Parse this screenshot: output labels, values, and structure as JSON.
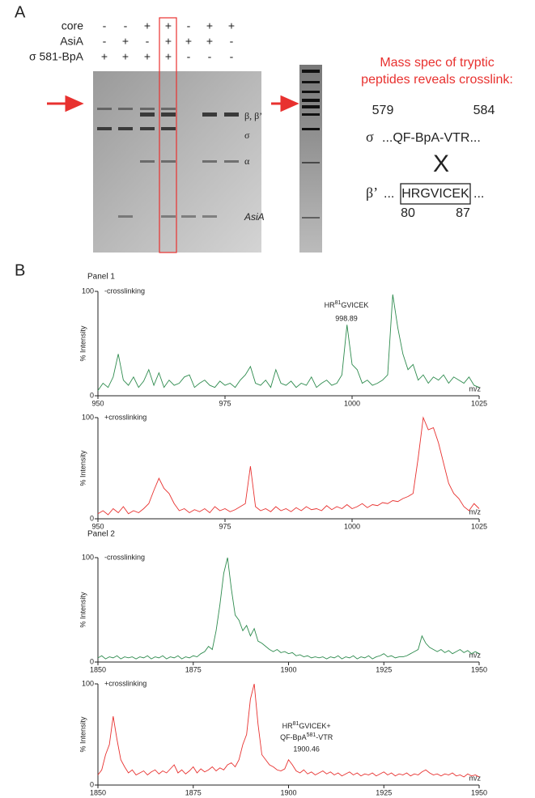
{
  "panel_a": {
    "label": "A",
    "row_labels": [
      "core",
      "AsiA",
      "σ 581-BpA"
    ],
    "lanes": [
      [
        "-",
        "-",
        "+",
        "+",
        "-",
        "+",
        "+"
      ],
      [
        "-",
        "+",
        "-",
        "+",
        "+",
        "+",
        "-"
      ],
      [
        "+",
        "+",
        "+",
        "+",
        "-",
        "-",
        "-"
      ]
    ],
    "band_labels": [
      "β, β’",
      "σ",
      "α",
      "AsiA"
    ],
    "ms_title": [
      "Mass spec of tryptic",
      "peptides reveals crosslink:"
    ],
    "sigma": {
      "symbol": "σ",
      "start": "579",
      "end": "584",
      "sequence": "...QF-BpA-VTR..."
    },
    "cross": "X",
    "beta": {
      "symbol": "β’",
      "prefix": "...",
      "boxed": "HRGVICEK",
      "suffix": "...",
      "start": "80",
      "end": "87"
    }
  },
  "panel_b": {
    "label": "B",
    "panels": [
      "Panel 1",
      "Panel 2"
    ]
  },
  "chart_data": [
    {
      "type": "line",
      "title": "-crosslinking",
      "ylabel": "% Intensity",
      "xlabel": "m/z",
      "x": [
        950,
        951,
        952,
        953,
        954,
        955,
        956,
        957,
        958,
        959,
        960,
        961,
        962,
        963,
        964,
        965,
        966,
        967,
        968,
        969,
        970,
        971,
        972,
        973,
        974,
        975,
        976,
        977,
        978,
        979,
        980,
        981,
        982,
        983,
        984,
        985,
        986,
        987,
        988,
        989,
        990,
        991,
        992,
        993,
        994,
        995,
        996,
        997,
        998,
        999,
        1000,
        1001,
        1002,
        1003,
        1004,
        1005,
        1006,
        1007,
        1008,
        1009,
        1010,
        1011,
        1012,
        1013,
        1014,
        1015,
        1016,
        1017,
        1018,
        1019,
        1020,
        1021,
        1022,
        1023,
        1024,
        1025
      ],
      "series": [
        {
          "color": "#2e8b4e",
          "values": [
            5,
            12,
            8,
            18,
            40,
            15,
            10,
            18,
            8,
            14,
            25,
            10,
            22,
            8,
            15,
            10,
            12,
            18,
            20,
            8,
            12,
            15,
            10,
            8,
            14,
            10,
            12,
            8,
            15,
            20,
            28,
            12,
            10,
            15,
            8,
            25,
            12,
            10,
            14,
            8,
            12,
            10,
            18,
            8,
            12,
            15,
            10,
            12,
            20,
            68,
            30,
            25,
            12,
            15,
            10,
            12,
            15,
            20,
            97,
            65,
            40,
            25,
            30,
            15,
            20,
            12,
            18,
            15,
            20,
            12,
            18,
            15,
            12,
            18,
            10,
            8
          ]
        }
      ],
      "xlim": [
        950,
        1025
      ],
      "ylim": [
        0,
        100
      ],
      "xticks": [
        950,
        975,
        1000,
        1025
      ],
      "yticks": [
        0,
        100
      ],
      "annotation": {
        "lines": [
          [
            {
              "text": "HR"
            },
            {
              "text": "81",
              "sup": true
            },
            {
              "text": "GVICEK"
            }
          ]
        ],
        "value": 998.89
      }
    },
    {
      "type": "line",
      "title": "+crosslinking",
      "ylabel": "% Intensity",
      "xlabel": "m/z",
      "x": [
        950,
        951,
        952,
        953,
        954,
        955,
        956,
        957,
        958,
        959,
        960,
        961,
        962,
        963,
        964,
        965,
        966,
        967,
        968,
        969,
        970,
        971,
        972,
        973,
        974,
        975,
        976,
        977,
        978,
        979,
        980,
        981,
        982,
        983,
        984,
        985,
        986,
        987,
        988,
        989,
        990,
        991,
        992,
        993,
        994,
        995,
        996,
        997,
        998,
        999,
        1000,
        1001,
        1002,
        1003,
        1004,
        1005,
        1006,
        1007,
        1008,
        1009,
        1010,
        1011,
        1012,
        1013,
        1014,
        1015,
        1016,
        1017,
        1018,
        1019,
        1020,
        1021,
        1022,
        1023,
        1024,
        1025
      ],
      "series": [
        {
          "color": "#e8312f",
          "values": [
            5,
            8,
            4,
            10,
            6,
            12,
            5,
            8,
            6,
            10,
            15,
            28,
            40,
            30,
            25,
            15,
            8,
            10,
            6,
            9,
            7,
            10,
            6,
            12,
            8,
            10,
            7,
            9,
            12,
            15,
            52,
            12,
            8,
            10,
            7,
            12,
            8,
            10,
            7,
            11,
            8,
            12,
            9,
            10,
            8,
            13,
            9,
            12,
            10,
            14,
            10,
            12,
            15,
            11,
            14,
            13,
            16,
            15,
            18,
            17,
            20,
            22,
            25,
            60,
            100,
            88,
            90,
            75,
            55,
            35,
            25,
            20,
            12,
            8,
            15,
            10
          ]
        }
      ],
      "xlim": [
        950,
        1025
      ],
      "ylim": [
        0,
        100
      ],
      "xticks": [
        950,
        975,
        1000,
        1025
      ],
      "yticks": [
        0,
        100
      ]
    },
    {
      "type": "line",
      "title": "-crosslinking",
      "ylabel": "% Intensity",
      "xlabel": "m/z",
      "x": [
        1850,
        1851,
        1852,
        1853,
        1854,
        1855,
        1856,
        1857,
        1858,
        1859,
        1860,
        1861,
        1862,
        1863,
        1864,
        1865,
        1866,
        1867,
        1868,
        1869,
        1870,
        1871,
        1872,
        1873,
        1874,
        1875,
        1876,
        1877,
        1878,
        1879,
        1880,
        1881,
        1882,
        1883,
        1884,
        1885,
        1886,
        1887,
        1888,
        1889,
        1890,
        1891,
        1892,
        1893,
        1894,
        1895,
        1896,
        1897,
        1898,
        1899,
        1900,
        1901,
        1902,
        1903,
        1904,
        1905,
        1906,
        1907,
        1908,
        1909,
        1910,
        1911,
        1912,
        1913,
        1914,
        1915,
        1916,
        1917,
        1918,
        1919,
        1920,
        1921,
        1922,
        1923,
        1924,
        1925,
        1926,
        1927,
        1928,
        1929,
        1930,
        1931,
        1932,
        1933,
        1934,
        1935,
        1936,
        1937,
        1938,
        1939,
        1940,
        1941,
        1942,
        1943,
        1944,
        1945,
        1946,
        1947,
        1948,
        1949,
        1950
      ],
      "series": [
        {
          "color": "#2e8b4e",
          "values": [
            4,
            6,
            3,
            5,
            4,
            6,
            3,
            5,
            4,
            5,
            3,
            5,
            4,
            6,
            3,
            5,
            4,
            6,
            3,
            5,
            4,
            6,
            3,
            5,
            4,
            6,
            5,
            8,
            10,
            15,
            12,
            30,
            55,
            85,
            100,
            70,
            45,
            40,
            30,
            35,
            25,
            32,
            20,
            18,
            15,
            12,
            10,
            12,
            9,
            10,
            8,
            9,
            6,
            7,
            5,
            6,
            4,
            5,
            4,
            5,
            3,
            5,
            4,
            6,
            3,
            5,
            4,
            6,
            3,
            5,
            4,
            6,
            3,
            5,
            6,
            8,
            5,
            6,
            4,
            5,
            5,
            6,
            8,
            10,
            12,
            25,
            18,
            14,
            12,
            10,
            12,
            9,
            11,
            8,
            10,
            12,
            9,
            11,
            8,
            10,
            8
          ]
        }
      ],
      "xlim": [
        1850,
        1950
      ],
      "ylim": [
        0,
        100
      ],
      "xticks": [
        1850,
        1875,
        1900,
        1925,
        1950
      ],
      "yticks": [
        0,
        100
      ]
    },
    {
      "type": "line",
      "title": "+crosslinking",
      "ylabel": "% Intensity",
      "xlabel": "m/z",
      "x": [
        1850,
        1851,
        1852,
        1853,
        1854,
        1855,
        1856,
        1857,
        1858,
        1859,
        1860,
        1861,
        1862,
        1863,
        1864,
        1865,
        1866,
        1867,
        1868,
        1869,
        1870,
        1871,
        1872,
        1873,
        1874,
        1875,
        1876,
        1877,
        1878,
        1879,
        1880,
        1881,
        1882,
        1883,
        1884,
        1885,
        1886,
        1887,
        1888,
        1889,
        1890,
        1891,
        1892,
        1893,
        1894,
        1895,
        1896,
        1897,
        1898,
        1899,
        1900,
        1901,
        1902,
        1903,
        1904,
        1905,
        1906,
        1907,
        1908,
        1909,
        1910,
        1911,
        1912,
        1913,
        1914,
        1915,
        1916,
        1917,
        1918,
        1919,
        1920,
        1921,
        1922,
        1923,
        1924,
        1925,
        1926,
        1927,
        1928,
        1929,
        1930,
        1931,
        1932,
        1933,
        1934,
        1935,
        1936,
        1937,
        1938,
        1939,
        1940,
        1941,
        1942,
        1943,
        1944,
        1945,
        1946,
        1947,
        1948,
        1949,
        1950
      ],
      "series": [
        {
          "color": "#e8312f",
          "values": [
            10,
            15,
            30,
            40,
            68,
            45,
            25,
            18,
            12,
            15,
            10,
            12,
            14,
            10,
            13,
            15,
            11,
            14,
            12,
            16,
            20,
            12,
            15,
            11,
            14,
            18,
            12,
            16,
            13,
            15,
            18,
            14,
            17,
            15,
            20,
            22,
            18,
            25,
            40,
            50,
            85,
            100,
            60,
            30,
            25,
            20,
            18,
            15,
            14,
            16,
            25,
            20,
            14,
            12,
            15,
            11,
            13,
            10,
            12,
            14,
            11,
            13,
            10,
            12,
            9,
            11,
            13,
            10,
            12,
            9,
            11,
            10,
            12,
            9,
            11,
            13,
            10,
            12,
            9,
            11,
            10,
            12,
            9,
            11,
            10,
            13,
            15,
            12,
            10,
            11,
            9,
            11,
            10,
            12,
            9,
            10,
            8,
            11,
            9,
            10,
            8
          ]
        }
      ],
      "xlim": [
        1850,
        1950
      ],
      "ylim": [
        0,
        100
      ],
      "xticks": [
        1850,
        1875,
        1900,
        1925,
        1950
      ],
      "yticks": [
        0,
        100
      ],
      "annotation": {
        "lines": [
          [
            {
              "text": "HR"
            },
            {
              "text": "81",
              "sup": true
            },
            {
              "text": "GVICEK+"
            }
          ],
          [
            {
              "text": "QF-BpA"
            },
            {
              "text": "581",
              "sup": true
            },
            {
              "text": "-VTR"
            }
          ]
        ],
        "value": 1900.46
      }
    }
  ]
}
